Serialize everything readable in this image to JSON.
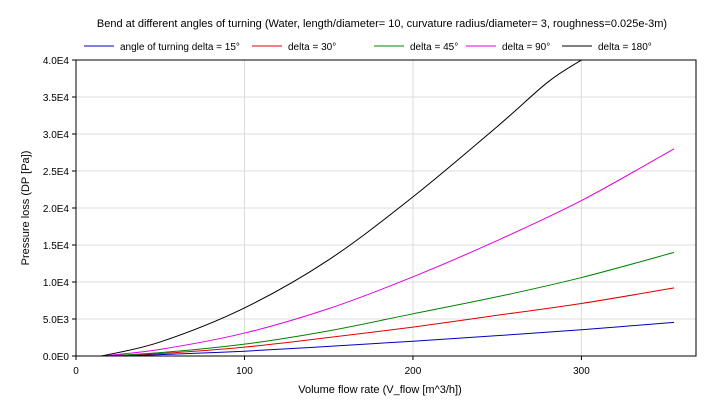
{
  "chart_data": {
    "type": "line",
    "title": "Bend at different angles of turning (Water, length/diameter= 10, curvature radius/diameter= 3, roughness=0.025e-3m)",
    "xlabel": "Volume flow rate (V_flow [m^3/h])",
    "ylabel": "Pressure loss (DP [Pa])",
    "xlim": [
      0,
      368
    ],
    "ylim": [
      0,
      40000
    ],
    "x_ticks": [
      0,
      100,
      200,
      300
    ],
    "x_tick_labels": [
      "0",
      "100",
      "200",
      "300"
    ],
    "y_ticks": [
      0,
      5000,
      10000,
      15000,
      20000,
      25000,
      30000,
      35000,
      40000
    ],
    "y_tick_labels": [
      "0.0E0",
      "5.0E3",
      "1.0E4",
      "1.5E4",
      "2.0E4",
      "2.5E4",
      "3.0E4",
      "3.5E4",
      "4.0E4"
    ],
    "grid": true,
    "legend_position": "top",
    "series": [
      {
        "name": "angle of turning delta = 15°",
        "color": "#0000c0",
        "x": [
          15,
          50,
          100,
          150,
          200,
          250,
          300,
          355
        ],
        "y": [
          0,
          180,
          650,
          1300,
          2000,
          2750,
          3550,
          4550
        ]
      },
      {
        "name": "delta = 30°",
        "color": "#e00000",
        "x": [
          15,
          50,
          100,
          150,
          200,
          250,
          300,
          355
        ],
        "y": [
          0,
          330,
          1200,
          2500,
          3900,
          5500,
          7100,
          9200
        ]
      },
      {
        "name": "delta = 45°",
        "color": "#008000",
        "x": [
          15,
          50,
          100,
          150,
          200,
          250,
          300,
          355
        ],
        "y": [
          0,
          450,
          1600,
          3400,
          5700,
          8000,
          10600,
          14000
        ]
      },
      {
        "name": "delta = 90°",
        "color": "#e000e0",
        "x": [
          15,
          50,
          100,
          150,
          200,
          250,
          300,
          355
        ],
        "y": [
          0,
          900,
          3100,
          6400,
          10700,
          15600,
          21000,
          28000
        ]
      },
      {
        "name": "delta = 180°",
        "color": "#000000",
        "x": [
          15,
          50,
          100,
          150,
          200,
          250,
          280,
          300,
          305
        ],
        "y": [
          0,
          1900,
          6500,
          13000,
          21500,
          31000,
          37000,
          40000,
          40800
        ]
      }
    ]
  }
}
